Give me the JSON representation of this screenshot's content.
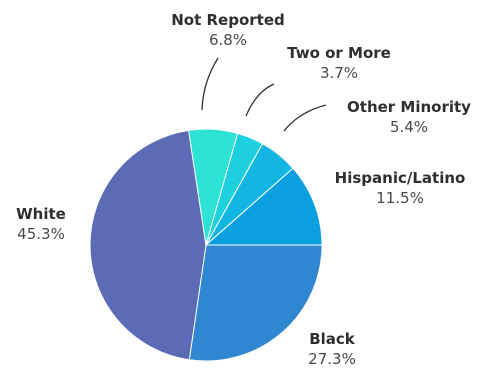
{
  "chart_data": {
    "type": "pie",
    "slices": [
      {
        "label": "Black",
        "value": 27.3,
        "display": "27.3%",
        "color": "#2f86d1"
      },
      {
        "label": "White",
        "value": 45.3,
        "display": "45.3%",
        "color": "#5b6bb5"
      },
      {
        "label": "Not Reported",
        "value": 6.8,
        "display": "6.8%",
        "color": "#2de3d6"
      },
      {
        "label": "Two or More",
        "value": 3.7,
        "display": "3.7%",
        "color": "#1ed0de"
      },
      {
        "label": "Other Minority",
        "value": 5.4,
        "display": "5.4%",
        "color": "#13b6e2"
      },
      {
        "label": "Hispanic/Latino",
        "value": 11.5,
        "display": "11.5%",
        "color": "#0aa0e0"
      }
    ],
    "start_angle_deg": 90,
    "direction": "clockwise"
  }
}
